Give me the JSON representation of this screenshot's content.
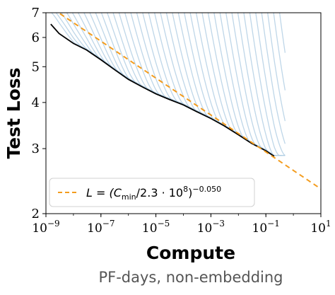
{
  "chart_data": {
    "type": "line",
    "xlabel": "Compute",
    "xsublabel": "PF-days, non-embedding",
    "ylabel": "Test Loss",
    "xscale": "log",
    "yscale": "log",
    "xlim": [
      1e-09,
      10
    ],
    "ylim": [
      2,
      7
    ],
    "xticks": [
      {
        "value": 1e-09,
        "base": "10",
        "exp": "−9"
      },
      {
        "value": 1e-07,
        "base": "10",
        "exp": "−7"
      },
      {
        "value": 1e-05,
        "base": "10",
        "exp": "−5"
      },
      {
        "value": 0.001,
        "base": "10",
        "exp": "−3"
      },
      {
        "value": 0.1,
        "base": "10",
        "exp": "−1"
      },
      {
        "value": 10,
        "base": "10",
        "exp": "1"
      }
    ],
    "yticks": [
      {
        "value": 2,
        "label": "2"
      },
      {
        "value": 3,
        "label": "3"
      },
      {
        "value": 4,
        "label": "4"
      },
      {
        "value": 5,
        "label": "5"
      },
      {
        "value": 6,
        "label": "6"
      },
      {
        "value": 7,
        "label": "7"
      }
    ],
    "legend": {
      "placement": "lower-left",
      "entry_prefix": "L = (C",
      "entry_sub": "min",
      "entry_mid": "/2.3 · 10",
      "entry_exp1": "8",
      "entry_close": ")",
      "entry_exp2": "−0.050"
    },
    "fit": {
      "type": "power-law",
      "c0": 230000000.0,
      "exponent": -0.05,
      "x_range": [
        1e-09,
        10
      ],
      "color": "#f39c1e",
      "style": "dashed"
    },
    "frontier": {
      "color": "#000000",
      "points": [
        [
          1.5e-09,
          6.52
        ],
        [
          3e-09,
          6.15
        ],
        [
          1e-08,
          5.78
        ],
        [
          3e-08,
          5.55
        ],
        [
          1e-07,
          5.22
        ],
        [
          3e-07,
          4.92
        ],
        [
          1e-06,
          4.62
        ],
        [
          3e-06,
          4.42
        ],
        [
          1e-05,
          4.22
        ],
        [
          3e-05,
          4.08
        ],
        [
          0.0001,
          3.94
        ],
        [
          0.0003,
          3.78
        ],
        [
          0.001,
          3.62
        ],
        [
          0.003,
          3.46
        ],
        [
          0.01,
          3.27
        ],
        [
          0.03,
          3.1
        ],
        [
          0.1,
          2.96
        ],
        [
          0.2,
          2.86
        ]
      ]
    },
    "runs": {
      "color": "#a8c8e0",
      "count": 40,
      "start_x_range": [
        1e-09,
        0.3
      ],
      "start_y": 7.2,
      "end_x": 0.5
    }
  }
}
